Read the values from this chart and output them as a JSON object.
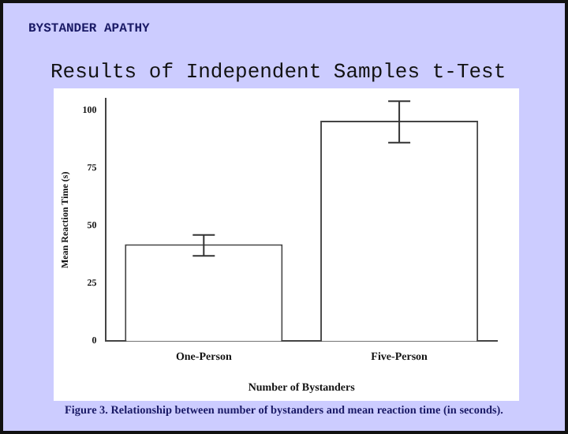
{
  "chart_data": {
    "type": "bar",
    "subtitle": "BYSTANDER APATHY",
    "title": "Results of Independent Samples t-Test",
    "xlabel": "Number of Bystanders",
    "ylabel": "Mean Reaction Time (s)",
    "categories": [
      "One-Person",
      "Five-Person"
    ],
    "values": [
      42,
      95.5
    ],
    "errors": [
      [
        37,
        46
      ],
      [
        86,
        104
      ]
    ],
    "color": "#444444",
    "ylim": [
      0,
      105
    ],
    "yticks": [
      0,
      25,
      50,
      75,
      100
    ],
    "grid": false,
    "legend": false,
    "annotations": [
      "Figure 3. Relationship between number of bystanders and mean reaction time (in seconds)."
    ]
  }
}
